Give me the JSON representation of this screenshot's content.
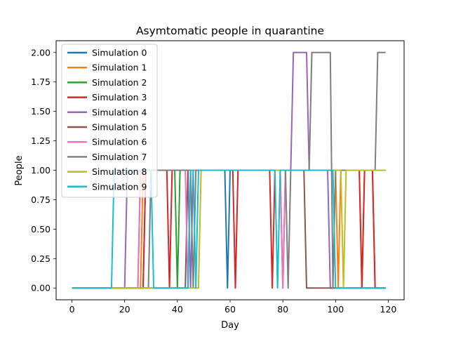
{
  "chart_data": {
    "type": "line",
    "title": "Asymtomatic people in quarantine",
    "xlabel": "Day",
    "ylabel": "People",
    "xlim": [
      -6,
      126
    ],
    "ylim": [
      -0.1,
      2.1
    ],
    "xticks": [
      0,
      20,
      40,
      60,
      80,
      100,
      120
    ],
    "xtick_labels": [
      "0",
      "20",
      "40",
      "60",
      "80",
      "100",
      "120"
    ],
    "yticks": [
      0,
      0.25,
      0.5,
      0.75,
      1.0,
      1.25,
      1.5,
      1.75,
      2.0
    ],
    "ytick_labels": [
      "0.00",
      "0.25",
      "0.50",
      "0.75",
      "1.00",
      "1.25",
      "1.50",
      "1.75",
      "2.00"
    ],
    "grid": false,
    "legend_position": "top-left",
    "series": [
      {
        "name": "Simulation 0",
        "color": "#1f77b4",
        "points": [
          [
            0,
            0
          ],
          [
            27,
            0
          ],
          [
            28,
            1
          ],
          [
            58,
            1
          ],
          [
            59,
            0
          ],
          [
            60,
            1
          ],
          [
            119,
            1
          ]
        ]
      },
      {
        "name": "Simulation 1",
        "color": "#ff7f0e",
        "points": [
          [
            0,
            0
          ],
          [
            26,
            0
          ],
          [
            27,
            1
          ],
          [
            100,
            1
          ],
          [
            101,
            0
          ],
          [
            102,
            1
          ],
          [
            109,
            1
          ],
          [
            110,
            0
          ],
          [
            111,
            1
          ],
          [
            114,
            1
          ],
          [
            115,
            0
          ],
          [
            119,
            0
          ]
        ]
      },
      {
        "name": "Simulation 2",
        "color": "#2ca02c",
        "points": [
          [
            0,
            0
          ],
          [
            25,
            0
          ],
          [
            26,
            1
          ],
          [
            39,
            1
          ],
          [
            40,
            0
          ],
          [
            41,
            1
          ],
          [
            119,
            1
          ]
        ]
      },
      {
        "name": "Simulation 3",
        "color": "#d62728",
        "points": [
          [
            0,
            0
          ],
          [
            27,
            0
          ],
          [
            28,
            1
          ],
          [
            36,
            1
          ],
          [
            37,
            0
          ],
          [
            38,
            1
          ],
          [
            61,
            1
          ],
          [
            62,
            0
          ],
          [
            63,
            1
          ],
          [
            75,
            1
          ],
          [
            76,
            0
          ],
          [
            77,
            1
          ],
          [
            109,
            1
          ],
          [
            110,
            0
          ],
          [
            111,
            1
          ],
          [
            114,
            1
          ],
          [
            115,
            0
          ],
          [
            119,
            0
          ]
        ]
      },
      {
        "name": "Simulation 4",
        "color": "#9467bd",
        "points": [
          [
            0,
            0
          ],
          [
            20,
            0
          ],
          [
            21,
            1
          ],
          [
            44,
            1
          ],
          [
            45,
            0
          ],
          [
            46,
            1
          ],
          [
            83,
            1
          ],
          [
            84,
            2
          ],
          [
            89,
            2
          ],
          [
            90,
            1
          ],
          [
            97,
            1
          ],
          [
            98,
            0
          ],
          [
            119,
            0
          ]
        ]
      },
      {
        "name": "Simulation 5",
        "color": "#8c564b",
        "points": [
          [
            0,
            0
          ],
          [
            43,
            0
          ],
          [
            44,
            1
          ],
          [
            79,
            1
          ],
          [
            80,
            0
          ],
          [
            81,
            1
          ],
          [
            88,
            1
          ],
          [
            89,
            0
          ],
          [
            119,
            0
          ]
        ]
      },
      {
        "name": "Simulation 6",
        "color": "#e377c2",
        "points": [
          [
            0,
            0
          ],
          [
            25,
            0
          ],
          [
            26,
            1
          ],
          [
            43,
            1
          ],
          [
            44,
            0
          ],
          [
            45,
            1
          ],
          [
            79,
            1
          ],
          [
            80,
            0
          ],
          [
            81,
            1
          ],
          [
            119,
            1
          ]
        ]
      },
      {
        "name": "Simulation 7",
        "color": "#7f7f7f",
        "points": [
          [
            0,
            0
          ],
          [
            29,
            0
          ],
          [
            30,
            1
          ],
          [
            45,
            1
          ],
          [
            46,
            0
          ],
          [
            47,
            1
          ],
          [
            81,
            1
          ],
          [
            82,
            0
          ],
          [
            83,
            1
          ],
          [
            90,
            1
          ],
          [
            91,
            2
          ],
          [
            98,
            2
          ],
          [
            99,
            0
          ],
          [
            100,
            1
          ],
          [
            115,
            1
          ],
          [
            116,
            2
          ],
          [
            119,
            2
          ]
        ]
      },
      {
        "name": "Simulation 8",
        "color": "#bcbd22",
        "points": [
          [
            0,
            0
          ],
          [
            48,
            0
          ],
          [
            49,
            1
          ],
          [
            102,
            1
          ],
          [
            103,
            0
          ],
          [
            104,
            1
          ],
          [
            119,
            1
          ]
        ]
      },
      {
        "name": "Simulation 9",
        "color": "#17becf",
        "points": [
          [
            0,
            0
          ],
          [
            15,
            0
          ],
          [
            16,
            1
          ],
          [
            30,
            1
          ],
          [
            31,
            0
          ],
          [
            44,
            0
          ],
          [
            45,
            1
          ],
          [
            46,
            1
          ],
          [
            47,
            0
          ],
          [
            48,
            1
          ],
          [
            77,
            1
          ],
          [
            78,
            0
          ],
          [
            79,
            1
          ],
          [
            99,
            1
          ],
          [
            100,
            0
          ],
          [
            119,
            0
          ]
        ]
      }
    ]
  }
}
